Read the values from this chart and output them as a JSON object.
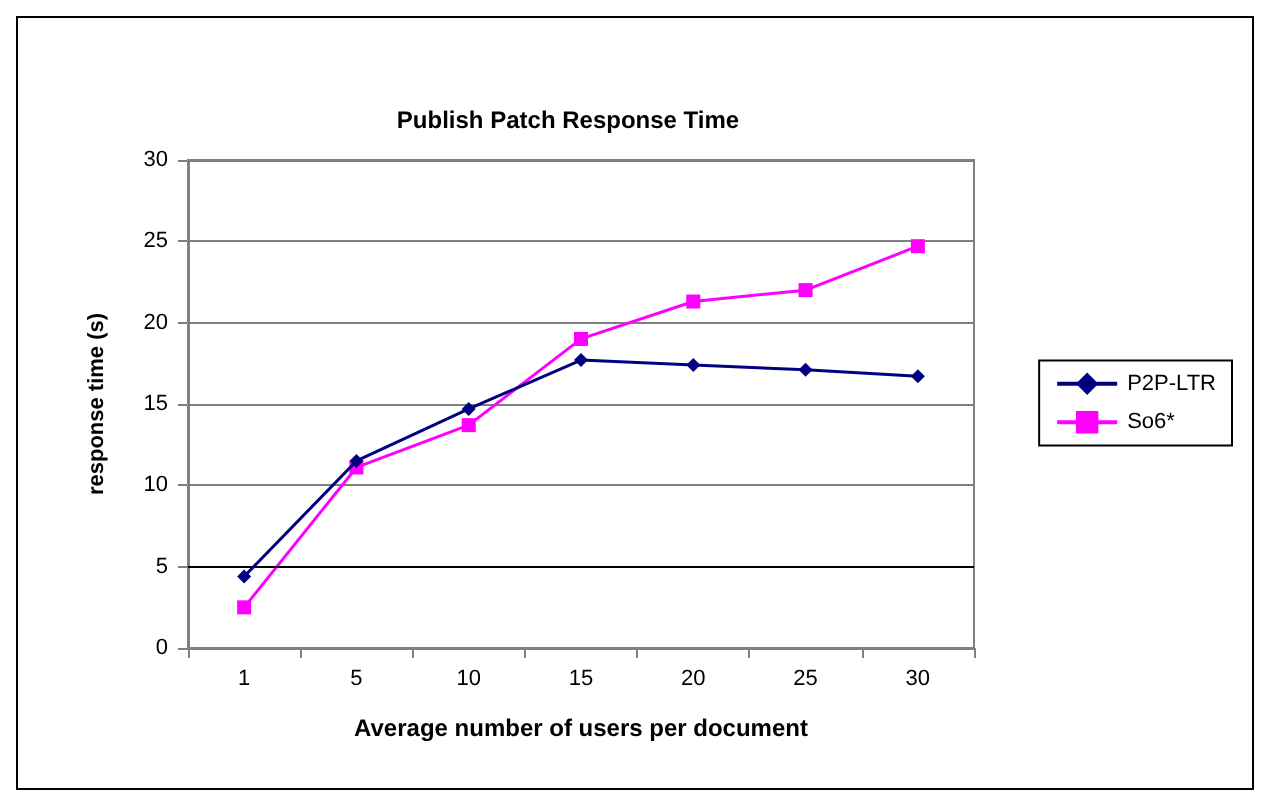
{
  "chart_data": {
    "type": "line",
    "title": "Publish Patch Response Time",
    "xlabel": "Average number of users per document",
    "ylabel": "response time (s)",
    "categories": [
      "1",
      "5",
      "10",
      "15",
      "20",
      "25",
      "30"
    ],
    "series": [
      {
        "name": "P2P-LTR",
        "color": "#000080",
        "marker": "diamond",
        "values": [
          4.4,
          11.5,
          14.7,
          17.7,
          17.4,
          17.1,
          16.7
        ]
      },
      {
        "name": "So6*",
        "color": "#ff00ff",
        "marker": "square",
        "values": [
          2.5,
          11.1,
          13.7,
          19.0,
          21.3,
          22.0,
          24.7
        ]
      }
    ],
    "ylim": [
      0,
      30
    ],
    "yticks": [
      0,
      5,
      10,
      15,
      20,
      25,
      30
    ],
    "grid": "y",
    "legend": "right",
    "ref_lines": [
      {
        "axis": "y",
        "value": 5,
        "color": "#000000"
      }
    ]
  }
}
